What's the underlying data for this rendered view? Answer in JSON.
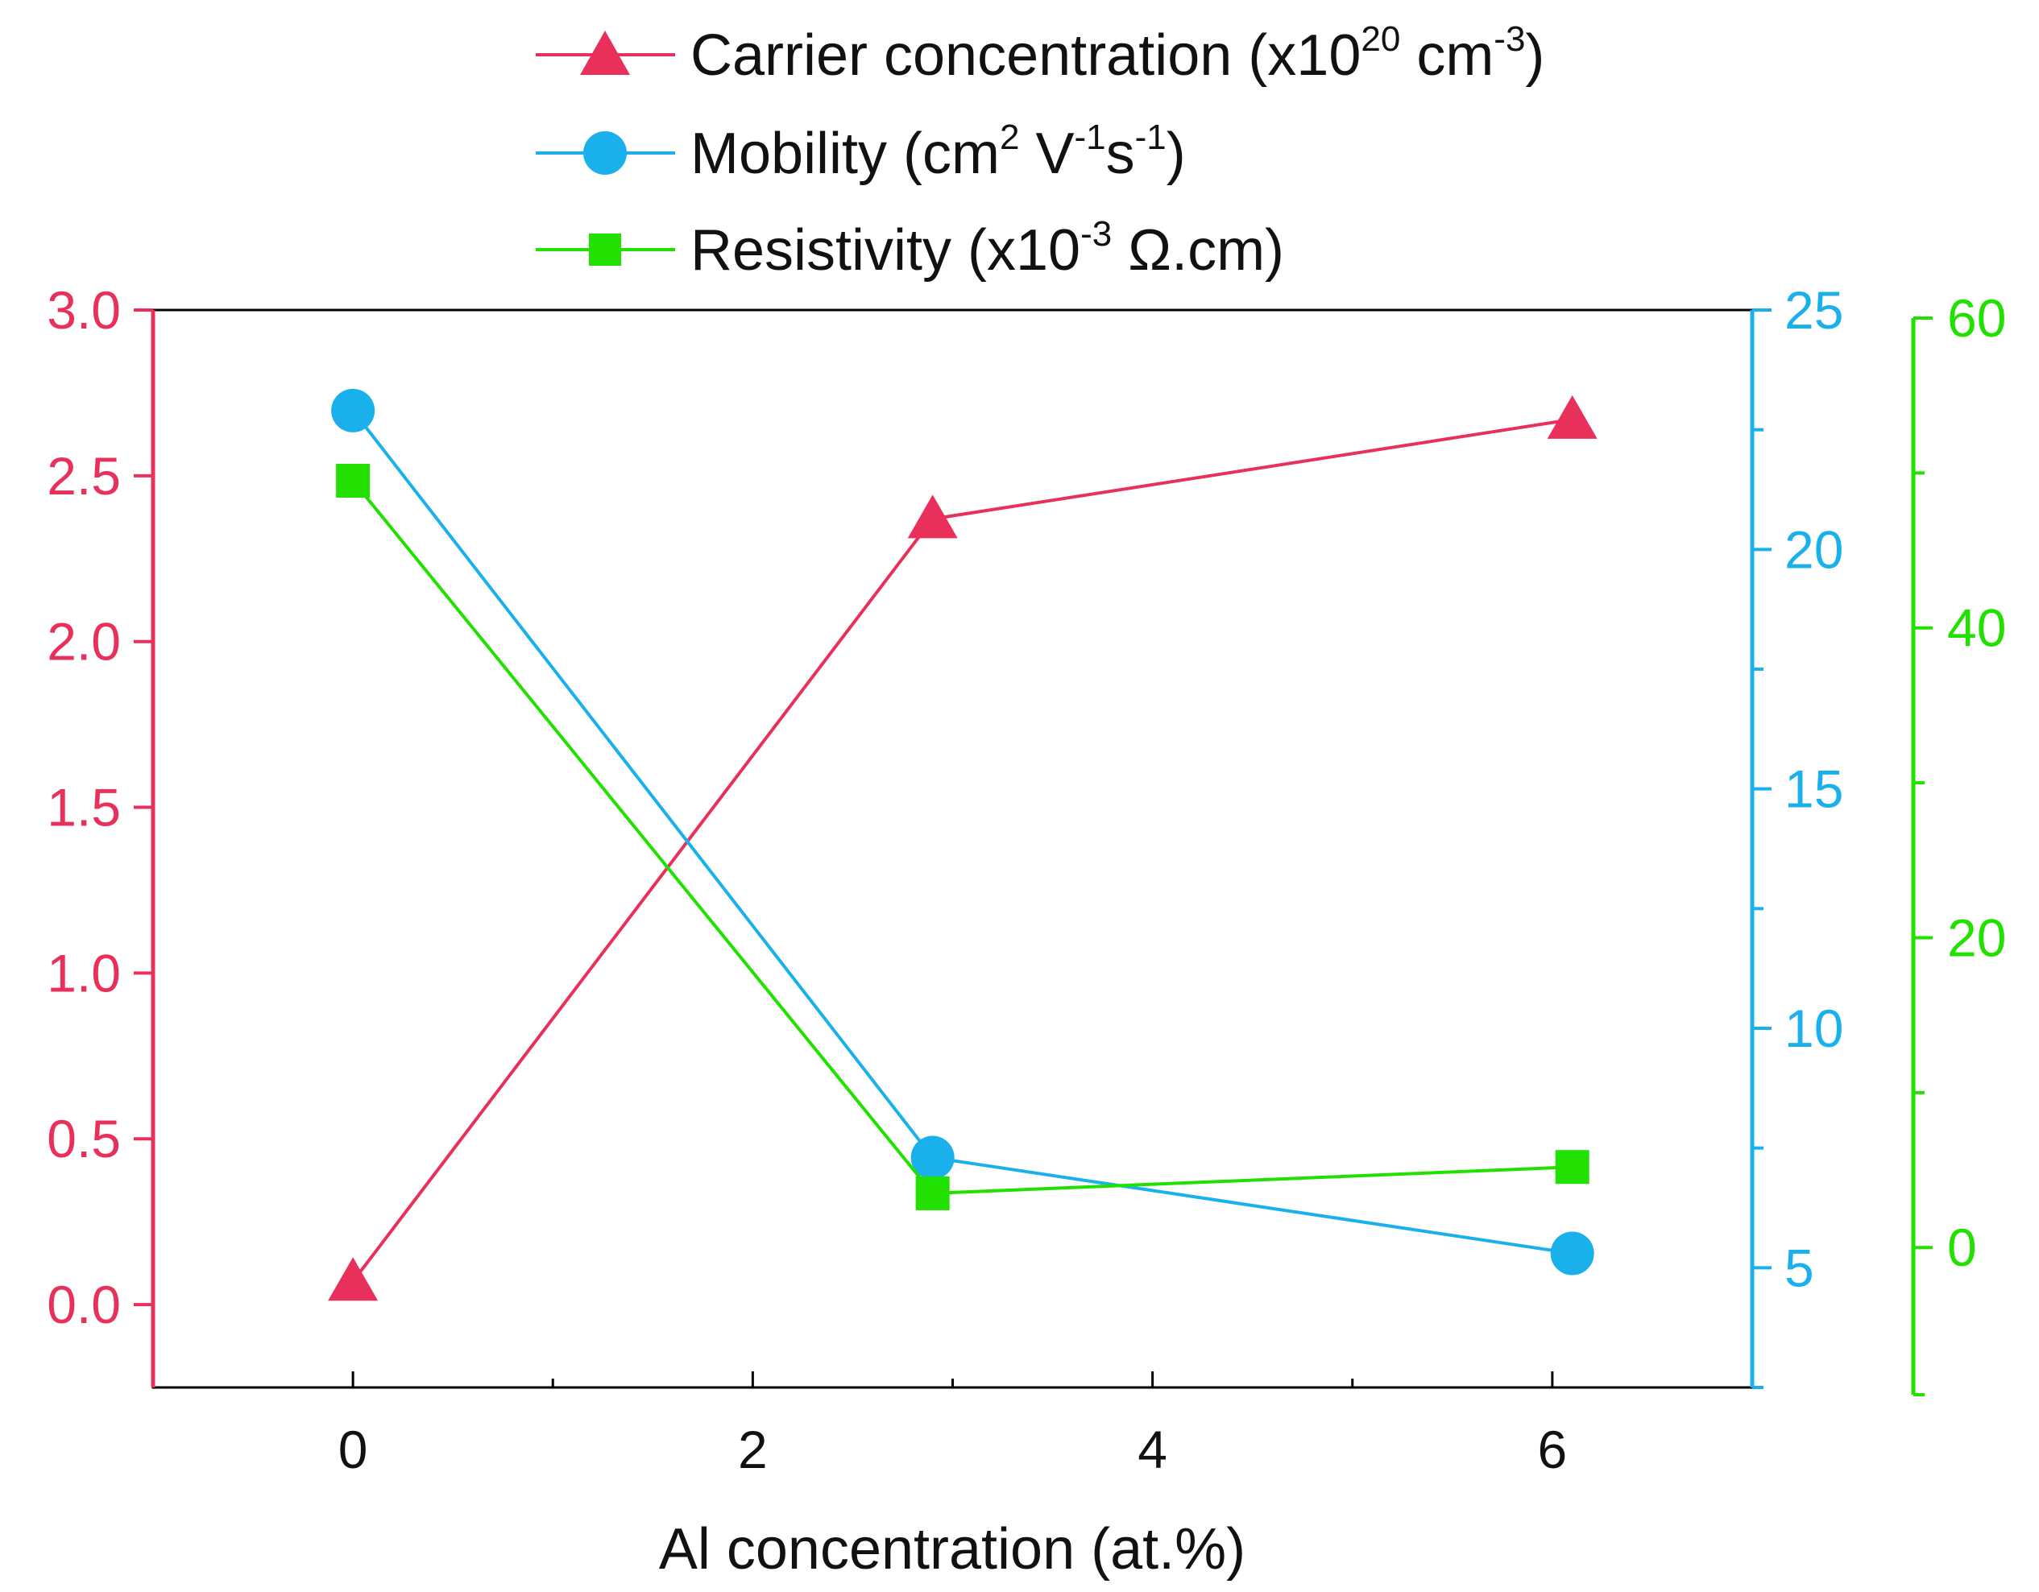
{
  "chart_data": {
    "type": "line",
    "xlabel": "Al concentration (at.%)",
    "x_ticks": [
      "0",
      "2",
      "4",
      "6"
    ],
    "xlim": [
      -1,
      7
    ],
    "x": [
      0,
      2.9,
      6.1
    ],
    "colors": {
      "carrier": "#e8305a",
      "mobility": "#1ab0ec",
      "resistivity": "#22e000"
    },
    "axes": {
      "left": {
        "ylim": [
          -0.25,
          3.0
        ],
        "ticks": [
          "0.0",
          "0.5",
          "1.0",
          "1.5",
          "2.0",
          "2.5",
          "3.0"
        ],
        "tick_values": [
          0,
          0.5,
          1,
          1.5,
          2,
          2.5,
          3
        ]
      },
      "right1": {
        "ylim": [
          2.5,
          25
        ],
        "ticks": [
          "5",
          "10",
          "15",
          "20",
          "25"
        ],
        "tick_values": [
          5,
          10,
          15,
          20,
          25
        ]
      },
      "right2": {
        "ylim": [
          -9.5,
          60
        ],
        "ticks": [
          "0",
          "20",
          "40",
          "60"
        ],
        "tick_values": [
          0,
          20,
          40,
          60
        ]
      }
    },
    "series": [
      {
        "key": "carrier",
        "name": "Carrier concentration (x10",
        "sup": "20",
        "name_mid": " cm",
        "sup2": "-3",
        "name_end": ")",
        "axis": "left",
        "marker": "triangle",
        "values": [
          0.07,
          2.37,
          2.67
        ]
      },
      {
        "key": "mobility",
        "name": "Mobility (cm",
        "sup": "2",
        "name_mid": " V",
        "sup2": "-1",
        "name_mid2": "s",
        "sup3": "-1",
        "name_end": ")",
        "axis": "right1",
        "marker": "circle",
        "values": [
          22.9,
          7.3,
          5.3
        ]
      },
      {
        "key": "resistivity",
        "name": "Resistivity (x10",
        "sup": "-3",
        "name_mid": " Ω.cm",
        "name_end": ")",
        "axis": "right2",
        "marker": "square",
        "values": [
          49.5,
          3.5,
          5.2
        ]
      }
    ]
  }
}
